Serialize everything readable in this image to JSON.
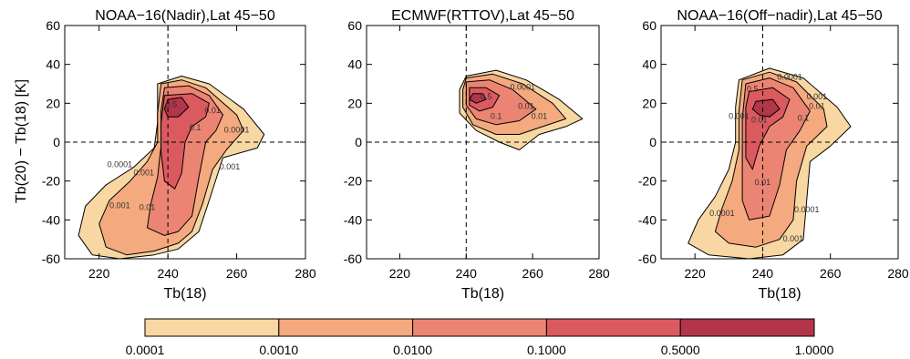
{
  "colors": {
    "level_1": "#f8d7a3",
    "level_2": "#f4a97f",
    "level_3": "#ec8473",
    "level_4": "#db5a5f",
    "level_5": "#b3354a",
    "outline": "#000000"
  },
  "chart_data": [
    {
      "type": "contour",
      "title": "NOAA−16(Nadir),Lat 45−50",
      "xlabel": "Tb(18)",
      "ylabel": "Tb(20) − Tb(18) [K]",
      "xlim": [
        210,
        280
      ],
      "ylim": [
        -60,
        60
      ],
      "xticks": [
        220,
        240,
        260,
        280
      ],
      "yticks": [
        -60,
        -40,
        -20,
        0,
        20,
        40,
        60
      ],
      "reference_lines": {
        "x": 240,
        "y": 0
      },
      "contour_labels": [
        {
          "text": "0.5",
          "x": 241,
          "y": 18
        },
        {
          "text": "0.01",
          "x": 253,
          "y": 15
        },
        {
          "text": "0.1",
          "x": 248,
          "y": 6
        },
        {
          "text": "0.0001",
          "x": 260,
          "y": 5
        },
        {
          "text": "0.001",
          "x": 258,
          "y": -14
        },
        {
          "text": "0.0001",
          "x": 226,
          "y": -13
        },
        {
          "text": "0.001",
          "x": 233,
          "y": -17
        },
        {
          "text": "0.001",
          "x": 226,
          "y": -34
        },
        {
          "text": "0.01",
          "x": 234,
          "y": -35
        }
      ],
      "regions": [
        {
          "level": 1,
          "points": [
            [
              237,
              30
            ],
            [
              244,
              34
            ],
            [
              252,
              30
            ],
            [
              262,
              17
            ],
            [
              268,
              4
            ],
            [
              266,
              -3
            ],
            [
              256,
              -8
            ],
            [
              252,
              -30
            ],
            [
              249,
              -46
            ],
            [
              243,
              -55
            ],
            [
              236,
              -58
            ],
            [
              226,
              -60
            ],
            [
              218,
              -58
            ],
            [
              214,
              -48
            ],
            [
              216,
              -33
            ],
            [
              222,
              -22
            ],
            [
              230,
              -13
            ],
            [
              236,
              -3
            ],
            [
              237,
              10
            ],
            [
              237,
              22
            ]
          ]
        },
        {
          "level": 2,
          "points": [
            [
              238,
              30
            ],
            [
              244,
              32
            ],
            [
              251,
              28
            ],
            [
              260,
              14
            ],
            [
              262,
              6
            ],
            [
              257,
              -4
            ],
            [
              253,
              -14
            ],
            [
              250,
              -32
            ],
            [
              247,
              -46
            ],
            [
              243,
              -52
            ],
            [
              236,
              -56
            ],
            [
              228,
              -58
            ],
            [
              222,
              -54
            ],
            [
              220,
              -42
            ],
            [
              223,
              -30
            ],
            [
              229,
              -20
            ],
            [
              234,
              -10
            ],
            [
              237,
              0
            ],
            [
              237,
              15
            ]
          ]
        },
        {
          "level": 3,
          "points": [
            [
              239,
              28
            ],
            [
              246,
              29
            ],
            [
              252,
              24
            ],
            [
              256,
              14
            ],
            [
              254,
              6
            ],
            [
              251,
              0
            ],
            [
              249,
              -18
            ],
            [
              247,
              -38
            ],
            [
              243,
              -46
            ],
            [
              239,
              -48
            ],
            [
              234,
              -44
            ],
            [
              235,
              -32
            ],
            [
              237,
              -18
            ],
            [
              238,
              -2
            ],
            [
              238,
              16
            ]
          ]
        },
        {
          "level": 4,
          "points": [
            [
              239,
              24
            ],
            [
              247,
              25
            ],
            [
              252,
              20
            ],
            [
              251,
              13
            ],
            [
              247,
              8
            ],
            [
              245,
              0
            ],
            [
              244,
              -16
            ],
            [
              242,
              -24
            ],
            [
              239,
              -20
            ],
            [
              238,
              -5
            ],
            [
              238,
              10
            ]
          ]
        },
        {
          "level": 5,
          "points": [
            [
              240,
              22
            ],
            [
              244,
              23
            ],
            [
              246,
              18
            ],
            [
              243,
              13
            ],
            [
              240,
              13
            ],
            [
              239,
              17
            ]
          ]
        }
      ]
    },
    {
      "type": "contour",
      "title": "ECMWF(RTTOV),Lat 45−50",
      "xlabel": "Tb(18)",
      "ylabel": "",
      "xlim": [
        210,
        280
      ],
      "ylim": [
        -60,
        60
      ],
      "xticks": [
        220,
        240,
        260,
        280
      ],
      "yticks": [
        -60,
        -40,
        -20,
        0,
        20,
        40,
        60
      ],
      "reference_lines": {
        "x": 240,
        "y": 0
      },
      "contour_labels": [
        {
          "text": "0.0001",
          "x": 257,
          "y": 27
        },
        {
          "text": "0.5",
          "x": 246,
          "y": 22
        },
        {
          "text": "0.01",
          "x": 258,
          "y": 17
        },
        {
          "text": "0.1",
          "x": 249,
          "y": 12
        },
        {
          "text": "0.01",
          "x": 262,
          "y": 12
        }
      ],
      "regions": [
        {
          "level": 1,
          "points": [
            [
              240,
              34
            ],
            [
              249,
              37
            ],
            [
              258,
              32
            ],
            [
              268,
              22
            ],
            [
              275,
              12
            ],
            [
              270,
              8
            ],
            [
              262,
              4
            ],
            [
              256,
              -4
            ],
            [
              250,
              0
            ],
            [
              243,
              6
            ],
            [
              238,
              15
            ],
            [
              238,
              27
            ]
          ]
        },
        {
          "level": 2,
          "points": [
            [
              240,
              33
            ],
            [
              248,
              35
            ],
            [
              257,
              30
            ],
            [
              266,
              20
            ],
            [
              270,
              12
            ],
            [
              263,
              8
            ],
            [
              256,
              4
            ],
            [
              249,
              4
            ],
            [
              242,
              9
            ],
            [
              239,
              18
            ],
            [
              239,
              27
            ]
          ]
        },
        {
          "level": 3,
          "points": [
            [
              240,
              31
            ],
            [
              247,
              32
            ],
            [
              254,
              27
            ],
            [
              261,
              17
            ],
            [
              256,
              11
            ],
            [
              249,
              9
            ],
            [
              243,
              12
            ],
            [
              240,
              19
            ],
            [
              240,
              26
            ]
          ]
        },
        {
          "level": 4,
          "points": [
            [
              241,
              28
            ],
            [
              246,
              28
            ],
            [
              250,
              24
            ],
            [
              248,
              18
            ],
            [
              244,
              16
            ],
            [
              241,
              19
            ]
          ]
        },
        {
          "level": 5,
          "points": [
            [
              242,
              25
            ],
            [
              245,
              25
            ],
            [
              246,
              22
            ],
            [
              243,
              20
            ],
            [
              241,
              22
            ]
          ]
        }
      ]
    },
    {
      "type": "contour",
      "title": "NOAA−16(Off−nadir),Lat 45−50",
      "xlabel": "Tb(18)",
      "ylabel": "",
      "xlim": [
        210,
        280
      ],
      "ylim": [
        -60,
        60
      ],
      "xticks": [
        220,
        240,
        260,
        280
      ],
      "yticks": [
        -60,
        -40,
        -20,
        0,
        20,
        40,
        60
      ],
      "reference_lines": {
        "x": 240,
        "y": 0
      },
      "contour_labels": [
        {
          "text": "0.0001",
          "x": 248,
          "y": 32
        },
        {
          "text": "0.5",
          "x": 237,
          "y": 26
        },
        {
          "text": "0.001",
          "x": 256,
          "y": 22
        },
        {
          "text": "0.1",
          "x": 252,
          "y": 11
        },
        {
          "text": "0.01",
          "x": 256,
          "y": 17
        },
        {
          "text": "0.001",
          "x": 233,
          "y": 12
        },
        {
          "text": "0.01",
          "x": 239,
          "y": 10
        },
        {
          "text": "0.01",
          "x": 240,
          "y": -22
        },
        {
          "text": "0.0001",
          "x": 253,
          "y": -36
        },
        {
          "text": "0.0001",
          "x": 228,
          "y": -38
        },
        {
          "text": "0.001",
          "x": 249,
          "y": -51
        }
      ],
      "regions": [
        {
          "level": 1,
          "points": [
            [
              233,
              32
            ],
            [
              242,
              38
            ],
            [
              252,
              33
            ],
            [
              262,
              18
            ],
            [
              266,
              8
            ],
            [
              260,
              -2
            ],
            [
              254,
              -10
            ],
            [
              253,
              -30
            ],
            [
              252,
              -50
            ],
            [
              246,
              -58
            ],
            [
              236,
              -60
            ],
            [
              224,
              -58
            ],
            [
              218,
              -52
            ],
            [
              221,
              -40
            ],
            [
              226,
              -28
            ],
            [
              230,
              -14
            ],
            [
              232,
              0
            ],
            [
              232,
              18
            ]
          ]
        },
        {
          "level": 2,
          "points": [
            [
              234,
              32
            ],
            [
              242,
              36
            ],
            [
              250,
              31
            ],
            [
              258,
              17
            ],
            [
              259,
              8
            ],
            [
              253,
              -2
            ],
            [
              250,
              -20
            ],
            [
              249,
              -40
            ],
            [
              245,
              -50
            ],
            [
              238,
              -54
            ],
            [
              230,
              -52
            ],
            [
              226,
              -46
            ],
            [
              228,
              -34
            ],
            [
              231,
              -20
            ],
            [
              233,
              -4
            ],
            [
              233,
              16
            ]
          ]
        },
        {
          "level": 3,
          "points": [
            [
              235,
              30
            ],
            [
              242,
              33
            ],
            [
              249,
              28
            ],
            [
              254,
              16
            ],
            [
              251,
              6
            ],
            [
              247,
              -4
            ],
            [
              245,
              -22
            ],
            [
              242,
              -38
            ],
            [
              236,
              -40
            ],
            [
              234,
              -30
            ],
            [
              234,
              -10
            ],
            [
              234,
              12
            ]
          ]
        },
        {
          "level": 4,
          "points": [
            [
              236,
              26
            ],
            [
              243,
              28
            ],
            [
              248,
              22
            ],
            [
              246,
              13
            ],
            [
              242,
              8
            ],
            [
              239,
              -2
            ],
            [
              237,
              -14
            ],
            [
              235,
              -8
            ],
            [
              235,
              8
            ],
            [
              235,
              18
            ]
          ]
        },
        {
          "level": 5,
          "points": [
            [
              238,
              21
            ],
            [
              243,
              22
            ],
            [
              245,
              17
            ],
            [
              242,
              13
            ],
            [
              239,
              14
            ],
            [
              237,
              17
            ]
          ]
        }
      ]
    }
  ],
  "colorbar": {
    "values": [
      "0.0001",
      "0.0010",
      "0.0100",
      "0.1000",
      "0.5000",
      "1.0000"
    ]
  }
}
